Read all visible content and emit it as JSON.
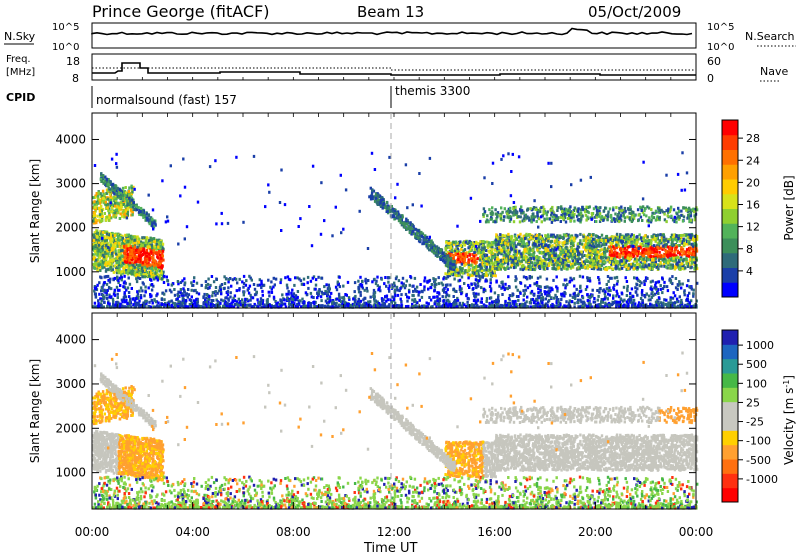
{
  "header": {
    "station": "Prince George (fitACF)",
    "beam": "Beam 13",
    "date": "05/Oct/2009"
  },
  "panels": {
    "nsky_label": "N.Sky",
    "nsky_ticks": [
      "10^5",
      "10^0"
    ],
    "nsearch_label": "N.Search",
    "nsearch_ticks": [
      "10^5",
      "10^0"
    ],
    "freq_label_line1": "Freq.",
    "freq_label_line2": "[MHz]",
    "freq_ticks": [
      "18",
      "8"
    ],
    "nave_label": "Nave",
    "nave_ticks": [
      "60",
      "0"
    ],
    "cpid_label": "CPID",
    "cpid_segments": [
      {
        "label": "normalsound (fast) 157",
        "start": "00:00"
      },
      {
        "label": "themis 3300",
        "start": "12:00"
      }
    ]
  },
  "power_colorbar": {
    "label": "Power [dB]",
    "ticks": [
      "28",
      "24",
      "20",
      "16",
      "12",
      "8",
      "4"
    ],
    "colors": [
      "#0000ff",
      "#1a3fa8",
      "#2e6b7a",
      "#3c8f5a",
      "#52b35a",
      "#8fd030",
      "#d8e21a",
      "#ffcc00",
      "#ffa000",
      "#ff7000",
      "#ff3c00",
      "#ff0000"
    ]
  },
  "velocity_colorbar": {
    "label": "Velocity [m s",
    "label_exp": "-1",
    "ticks": [
      "1000",
      "500",
      "100",
      "25",
      "-25",
      "-100",
      "-500",
      "-1000"
    ],
    "colors": [
      "#2020b0",
      "#1e66c0",
      "#2a9a96",
      "#46b846",
      "#8ad64a",
      "#c8c8c0",
      "#c8c8c0",
      "#ffd000",
      "#ffa030",
      "#ff7010",
      "#ff3010",
      "#ff0000"
    ]
  },
  "chart_data": [
    {
      "type": "heatmap",
      "name": "power",
      "ylabel": "Slant Range [km]",
      "ylim": [
        180,
        4600
      ],
      "xlim": [
        0,
        24
      ],
      "yticks": [
        1000,
        2000,
        3000,
        4000
      ],
      "ytick_labels": [
        "1000",
        "2000",
        "3000",
        "4000"
      ],
      "regions": [
        {
          "t0": 0.0,
          "t1": 2.8,
          "r0": 900,
          "r1": 2000,
          "level": "high"
        },
        {
          "t0": 0.0,
          "t1": 1.5,
          "r0": 2100,
          "r1": 2800,
          "level": "mid"
        },
        {
          "t0": 14.0,
          "t1": 24.0,
          "r0": 1000,
          "r1": 1900,
          "level": "high"
        },
        {
          "t0": 16.0,
          "t1": 24.0,
          "r0": 2200,
          "r1": 2500,
          "level": "mid"
        },
        {
          "t0": 0.0,
          "t1": 24.0,
          "r0": 180,
          "r1": 700,
          "level": "low"
        }
      ]
    },
    {
      "type": "heatmap",
      "name": "velocity",
      "ylabel": "Slant Range [km]",
      "xlabel": "Time UT",
      "ylim": [
        180,
        4600
      ],
      "xlim": [
        0,
        24
      ],
      "yticks": [
        1000,
        2000,
        3000,
        4000
      ],
      "ytick_labels": [
        "1000",
        "2000",
        "3000",
        "4000"
      ],
      "xticks": [
        0,
        4,
        8,
        12,
        16,
        20,
        24
      ],
      "xtick_labels": [
        "00:00",
        "04:00",
        "08:00",
        "12:00",
        "16:00",
        "20:00",
        "00:00"
      ]
    }
  ]
}
